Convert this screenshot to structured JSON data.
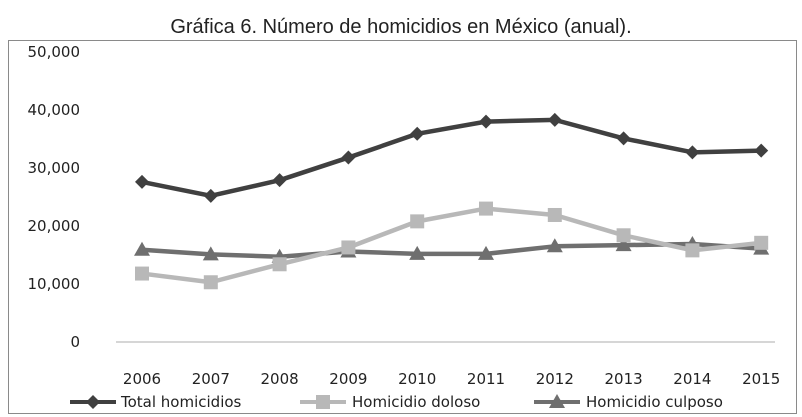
{
  "chart_data": {
    "type": "line",
    "title": "Gráfica 6. Número de homicidios en México (anual).",
    "xlabel": "",
    "ylabel": "",
    "categories": [
      "2006",
      "2007",
      "2008",
      "2009",
      "2010",
      "2011",
      "2012",
      "2013",
      "2014",
      "2015"
    ],
    "ylim": [
      0,
      50000
    ],
    "yticks": [
      "0",
      "10,000",
      "20,000",
      "30,000",
      "40,000",
      "50,000"
    ],
    "grid": false,
    "legend_position": "bottom",
    "series": [
      {
        "name": "Total homicidios",
        "color": "#404040",
        "marker": "diamond",
        "values": [
          27600,
          25200,
          27900,
          31800,
          35900,
          38000,
          38300,
          35100,
          32700,
          33000
        ]
      },
      {
        "name": "Homicidio doloso",
        "color": "#b8b8b8",
        "marker": "square",
        "values": [
          11800,
          10300,
          13400,
          16300,
          20800,
          23000,
          21900,
          18400,
          15800,
          17100
        ]
      },
      {
        "name": "Homicidio culposo",
        "color": "#6f6f6f",
        "marker": "triangle",
        "values": [
          15900,
          15100,
          14700,
          15600,
          15200,
          15200,
          16500,
          16700,
          16900,
          16100
        ]
      }
    ]
  }
}
